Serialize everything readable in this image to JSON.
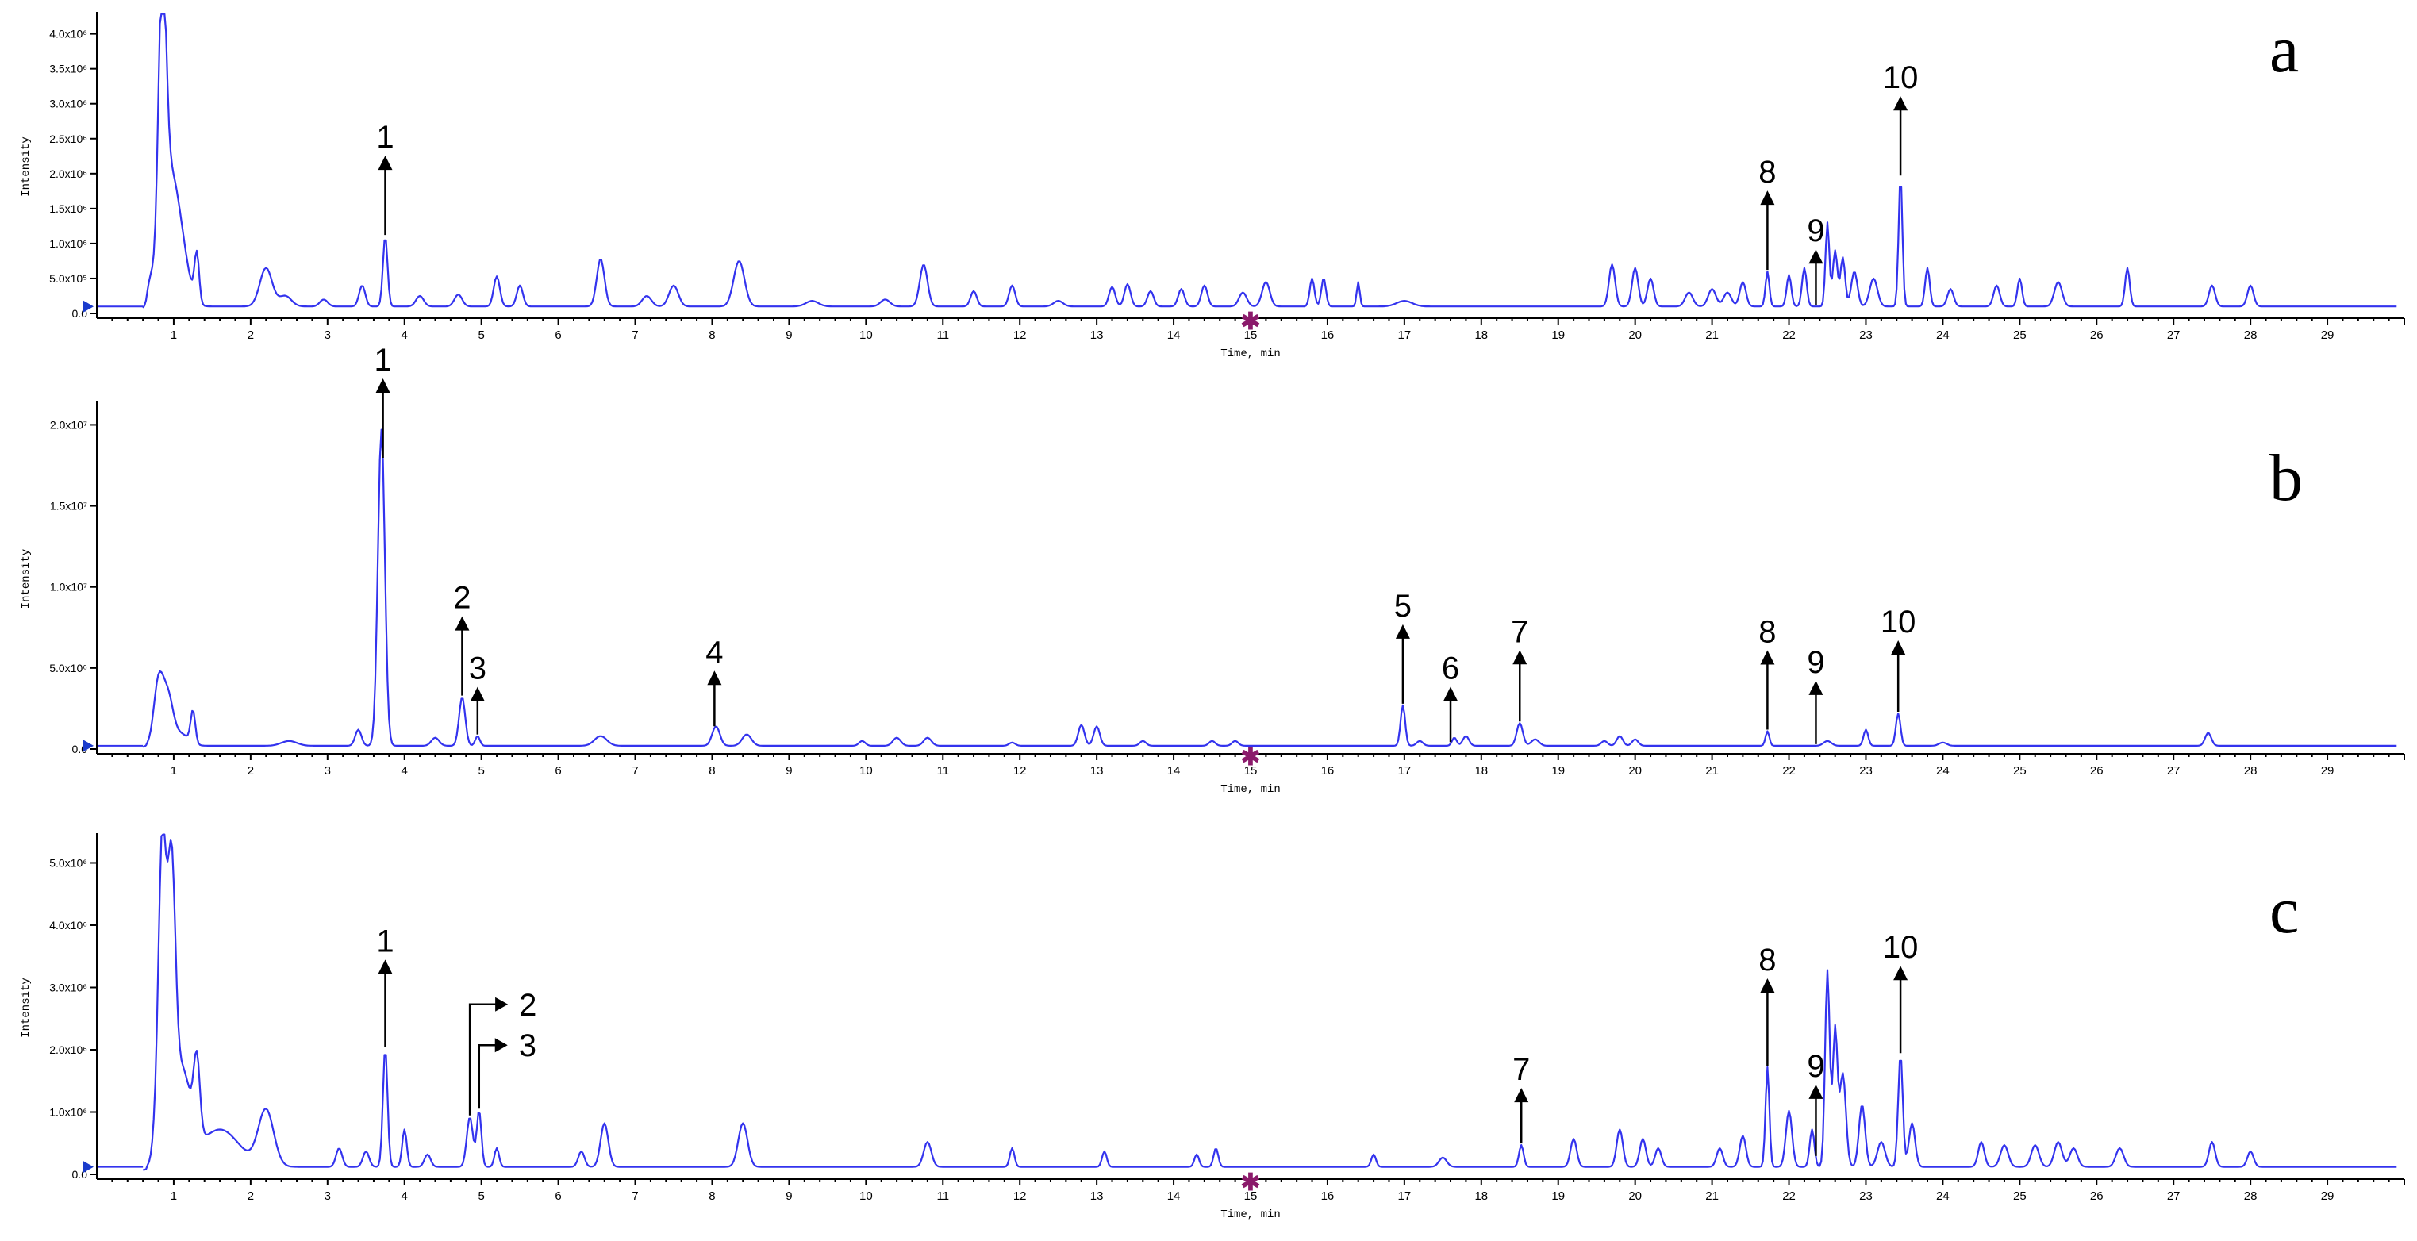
{
  "chart_data": [
    {
      "type": "line",
      "panel_letter": "a",
      "xlabel": "Time, min",
      "ylabel": "Intensity",
      "xlim": [
        0,
        30
      ],
      "ylim": [
        0,
        4200000
      ],
      "y_ticks": [
        {
          "value": 0,
          "label": "0.0"
        },
        {
          "value": 500000,
          "label": "5.0x10⁵"
        },
        {
          "value": 1000000,
          "label": "1.0x10⁶"
        },
        {
          "value": 1500000,
          "label": "1.5x10⁶"
        },
        {
          "value": 2000000,
          "label": "2.0x10⁶"
        },
        {
          "value": 2500000,
          "label": "2.5x10⁶"
        },
        {
          "value": 3000000,
          "label": "3.0x10⁶"
        },
        {
          "value": 3500000,
          "label": "3.5x10⁶"
        },
        {
          "value": 4000000,
          "label": "4.0x10⁶"
        }
      ],
      "x_ticks": [
        "1",
        "2",
        "3",
        "4",
        "5",
        "6",
        "7",
        "8",
        "9",
        "10",
        "11",
        "12",
        "13",
        "14",
        "15",
        "16",
        "17",
        "18",
        "19",
        "20",
        "21",
        "22",
        "23",
        "24",
        "25",
        "26",
        "27",
        "28",
        "29"
      ],
      "baseline": 100000,
      "peaks": [
        [
          0.7,
          350000,
          0.04
        ],
        [
          0.85,
          4000000,
          0.05
        ],
        [
          0.95,
          1600000,
          0.1
        ],
        [
          1.1,
          700000,
          0.1
        ],
        [
          1.3,
          700000,
          0.03
        ],
        [
          2.2,
          550000,
          0.08
        ],
        [
          2.45,
          150000,
          0.08
        ],
        [
          2.95,
          100000,
          0.05
        ],
        [
          3.45,
          300000,
          0.04
        ],
        [
          3.75,
          1000000,
          0.03
        ],
        [
          4.2,
          150000,
          0.05
        ],
        [
          4.7,
          170000,
          0.05
        ],
        [
          5.2,
          430000,
          0.04
        ],
        [
          5.5,
          300000,
          0.04
        ],
        [
          6.55,
          680000,
          0.05
        ],
        [
          7.15,
          150000,
          0.06
        ],
        [
          7.5,
          300000,
          0.06
        ],
        [
          8.35,
          650000,
          0.07
        ],
        [
          9.3,
          80000,
          0.08
        ],
        [
          10.25,
          100000,
          0.06
        ],
        [
          10.75,
          600000,
          0.05
        ],
        [
          11.4,
          220000,
          0.04
        ],
        [
          11.9,
          300000,
          0.04
        ],
        [
          12.5,
          80000,
          0.06
        ],
        [
          13.2,
          280000,
          0.04
        ],
        [
          13.4,
          320000,
          0.04
        ],
        [
          13.7,
          220000,
          0.04
        ],
        [
          14.1,
          250000,
          0.04
        ],
        [
          14.4,
          300000,
          0.04
        ],
        [
          14.9,
          200000,
          0.05
        ],
        [
          15.2,
          350000,
          0.05
        ],
        [
          15.8,
          400000,
          0.03
        ],
        [
          15.95,
          400000,
          0.03
        ],
        [
          16.4,
          350000,
          0.02
        ],
        [
          17.0,
          80000,
          0.1
        ],
        [
          19.7,
          600000,
          0.04
        ],
        [
          20.0,
          550000,
          0.04
        ],
        [
          20.2,
          400000,
          0.04
        ],
        [
          20.7,
          200000,
          0.05
        ],
        [
          21.0,
          250000,
          0.05
        ],
        [
          21.2,
          200000,
          0.05
        ],
        [
          21.4,
          350000,
          0.04
        ],
        [
          21.72,
          500000,
          0.025
        ],
        [
          22.0,
          450000,
          0.03
        ],
        [
          22.2,
          550000,
          0.03
        ],
        [
          22.5,
          1200000,
          0.025
        ],
        [
          22.6,
          800000,
          0.03
        ],
        [
          22.7,
          700000,
          0.03
        ],
        [
          22.85,
          500000,
          0.04
        ],
        [
          23.1,
          400000,
          0.05
        ],
        [
          23.45,
          1850000,
          0.025
        ],
        [
          23.8,
          550000,
          0.03
        ],
        [
          24.1,
          250000,
          0.04
        ],
        [
          24.7,
          300000,
          0.04
        ],
        [
          25.0,
          400000,
          0.03
        ],
        [
          25.5,
          350000,
          0.05
        ],
        [
          26.4,
          550000,
          0.03
        ],
        [
          27.5,
          300000,
          0.04
        ],
        [
          28.0,
          300000,
          0.04
        ]
      ],
      "annotations": [
        {
          "label": "1",
          "x": 3.75,
          "style": "up"
        },
        {
          "label": "8",
          "x": 21.72,
          "style": "up"
        },
        {
          "label": "9",
          "x": 22.35,
          "style": "up"
        },
        {
          "label": "10",
          "x": 23.45,
          "style": "up"
        }
      ]
    },
    {
      "type": "line",
      "panel_letter": "b",
      "xlabel": "Time, min",
      "ylabel": "Intensity",
      "xlim": [
        0,
        30
      ],
      "ylim": [
        0,
        21000000
      ],
      "y_ticks": [
        {
          "value": 0,
          "label": "0.0"
        },
        {
          "value": 5000000,
          "label": "5.0x10⁶"
        },
        {
          "value": 10000000,
          "label": "1.0x10⁷"
        },
        {
          "value": 15000000,
          "label": "1.5x10⁷"
        },
        {
          "value": 20000000,
          "label": "2.0x10⁷"
        }
      ],
      "x_ticks": [
        "1",
        "2",
        "3",
        "4",
        "5",
        "6",
        "7",
        "8",
        "9",
        "10",
        "11",
        "12",
        "13",
        "14",
        "15",
        "16",
        "17",
        "18",
        "19",
        "20",
        "21",
        "22",
        "23",
        "24",
        "25",
        "26",
        "27",
        "28",
        "29"
      ],
      "baseline": 200000,
      "peaks": [
        [
          0.8,
          3700000,
          0.06
        ],
        [
          0.92,
          3000000,
          0.07
        ],
        [
          1.1,
          700000,
          0.1
        ],
        [
          1.25,
          2000000,
          0.03
        ],
        [
          2.5,
          300000,
          0.1
        ],
        [
          3.4,
          1000000,
          0.04
        ],
        [
          3.7,
          19500000,
          0.045
        ],
        [
          4.4,
          500000,
          0.05
        ],
        [
          4.75,
          3000000,
          0.04
        ],
        [
          4.95,
          600000,
          0.03
        ],
        [
          6.55,
          600000,
          0.08
        ],
        [
          8.05,
          1200000,
          0.05
        ],
        [
          8.45,
          700000,
          0.06
        ],
        [
          9.95,
          300000,
          0.04
        ],
        [
          10.4,
          500000,
          0.05
        ],
        [
          10.8,
          500000,
          0.05
        ],
        [
          11.9,
          200000,
          0.04
        ],
        [
          12.8,
          1300000,
          0.04
        ],
        [
          13.0,
          1200000,
          0.04
        ],
        [
          13.6,
          300000,
          0.04
        ],
        [
          14.5,
          300000,
          0.04
        ],
        [
          14.8,
          300000,
          0.04
        ],
        [
          16.98,
          2500000,
          0.03
        ],
        [
          17.2,
          300000,
          0.04
        ],
        [
          17.65,
          500000,
          0.03
        ],
        [
          17.8,
          600000,
          0.04
        ],
        [
          18.5,
          1400000,
          0.04
        ],
        [
          18.7,
          400000,
          0.05
        ],
        [
          19.6,
          300000,
          0.04
        ],
        [
          19.8,
          600000,
          0.04
        ],
        [
          20.0,
          400000,
          0.04
        ],
        [
          21.72,
          900000,
          0.025
        ],
        [
          22.5,
          300000,
          0.05
        ],
        [
          23.0,
          1000000,
          0.03
        ],
        [
          23.42,
          2000000,
          0.03
        ],
        [
          24.0,
          200000,
          0.05
        ],
        [
          27.45,
          800000,
          0.04
        ]
      ],
      "annotations": [
        {
          "label": "1",
          "x": 3.72,
          "style": "up"
        },
        {
          "label": "2",
          "x": 4.75,
          "style": "up"
        },
        {
          "label": "3",
          "x": 4.95,
          "style": "up"
        },
        {
          "label": "4",
          "x": 8.03,
          "style": "up"
        },
        {
          "label": "5",
          "x": 16.98,
          "style": "up"
        },
        {
          "label": "6",
          "x": 17.6,
          "style": "up"
        },
        {
          "label": "7",
          "x": 18.5,
          "style": "up"
        },
        {
          "label": "8",
          "x": 21.72,
          "style": "up"
        },
        {
          "label": "9",
          "x": 22.35,
          "style": "up"
        },
        {
          "label": "10",
          "x": 23.42,
          "style": "up"
        }
      ]
    },
    {
      "type": "line",
      "panel_letter": "c",
      "xlabel": "Time, min",
      "ylabel": "Intensity",
      "xlim": [
        0,
        30
      ],
      "ylim": [
        0,
        5350000
      ],
      "y_ticks": [
        {
          "value": 0,
          "label": "0.0"
        },
        {
          "value": 1000000,
          "label": "1.0x10⁶"
        },
        {
          "value": 2000000,
          "label": "2.0x10⁶"
        },
        {
          "value": 3000000,
          "label": "3.0x10⁶"
        },
        {
          "value": 4000000,
          "label": "4.0x10⁶"
        },
        {
          "value": 5000000,
          "label": "5.0x10⁶"
        }
      ],
      "x_ticks": [
        "1",
        "2",
        "3",
        "4",
        "5",
        "6",
        "7",
        "8",
        "9",
        "10",
        "11",
        "12",
        "13",
        "14",
        "15",
        "16",
        "17",
        "18",
        "19",
        "20",
        "21",
        "22",
        "23",
        "24",
        "25",
        "26",
        "27",
        "28",
        "29"
      ],
      "baseline": 120000,
      "peaks": [
        [
          0.75,
          300000,
          0.04
        ],
        [
          0.85,
          5100000,
          0.05
        ],
        [
          0.97,
          4100000,
          0.05
        ],
        [
          1.1,
          1500000,
          0.12
        ],
        [
          1.3,
          1200000,
          0.04
        ],
        [
          1.6,
          600000,
          0.25
        ],
        [
          2.2,
          900000,
          0.1
        ],
        [
          3.15,
          300000,
          0.04
        ],
        [
          3.5,
          250000,
          0.04
        ],
        [
          3.75,
          1900000,
          0.03
        ],
        [
          4.0,
          600000,
          0.03
        ],
        [
          4.3,
          200000,
          0.04
        ],
        [
          4.85,
          800000,
          0.04
        ],
        [
          4.97,
          900000,
          0.03
        ],
        [
          5.2,
          300000,
          0.03
        ],
        [
          6.3,
          250000,
          0.04
        ],
        [
          6.6,
          700000,
          0.05
        ],
        [
          8.4,
          700000,
          0.06
        ],
        [
          10.8,
          400000,
          0.05
        ],
        [
          11.9,
          300000,
          0.03
        ],
        [
          13.1,
          250000,
          0.03
        ],
        [
          14.3,
          200000,
          0.03
        ],
        [
          14.55,
          300000,
          0.03
        ],
        [
          16.6,
          200000,
          0.03
        ],
        [
          17.5,
          150000,
          0.05
        ],
        [
          18.52,
          350000,
          0.03
        ],
        [
          19.2,
          450000,
          0.04
        ],
        [
          19.8,
          600000,
          0.04
        ],
        [
          20.1,
          450000,
          0.04
        ],
        [
          20.3,
          300000,
          0.04
        ],
        [
          21.1,
          300000,
          0.04
        ],
        [
          21.4,
          500000,
          0.04
        ],
        [
          21.72,
          1600000,
          0.025
        ],
        [
          22.0,
          900000,
          0.04
        ],
        [
          22.3,
          600000,
          0.03
        ],
        [
          22.5,
          3150000,
          0.03
        ],
        [
          22.6,
          2200000,
          0.03
        ],
        [
          22.7,
          1500000,
          0.04
        ],
        [
          22.95,
          1000000,
          0.04
        ],
        [
          23.2,
          400000,
          0.05
        ],
        [
          23.45,
          1800000,
          0.03
        ],
        [
          23.6,
          700000,
          0.04
        ],
        [
          24.5,
          400000,
          0.04
        ],
        [
          24.8,
          350000,
          0.05
        ],
        [
          25.2,
          350000,
          0.05
        ],
        [
          25.5,
          400000,
          0.05
        ],
        [
          25.7,
          300000,
          0.05
        ],
        [
          26.3,
          300000,
          0.05
        ],
        [
          27.5,
          400000,
          0.04
        ],
        [
          28.0,
          250000,
          0.04
        ]
      ],
      "annotations": [
        {
          "label": "1",
          "x": 3.75,
          "style": "up"
        },
        {
          "label": "2",
          "x": 4.85,
          "style": "bent"
        },
        {
          "label": "3",
          "x": 4.97,
          "style": "bent"
        },
        {
          "label": "7",
          "x": 18.52,
          "style": "up"
        },
        {
          "label": "8",
          "x": 21.72,
          "style": "up"
        },
        {
          "label": "9",
          "x": 22.35,
          "style": "up"
        },
        {
          "label": "10",
          "x": 23.45,
          "style": "up"
        }
      ]
    }
  ]
}
